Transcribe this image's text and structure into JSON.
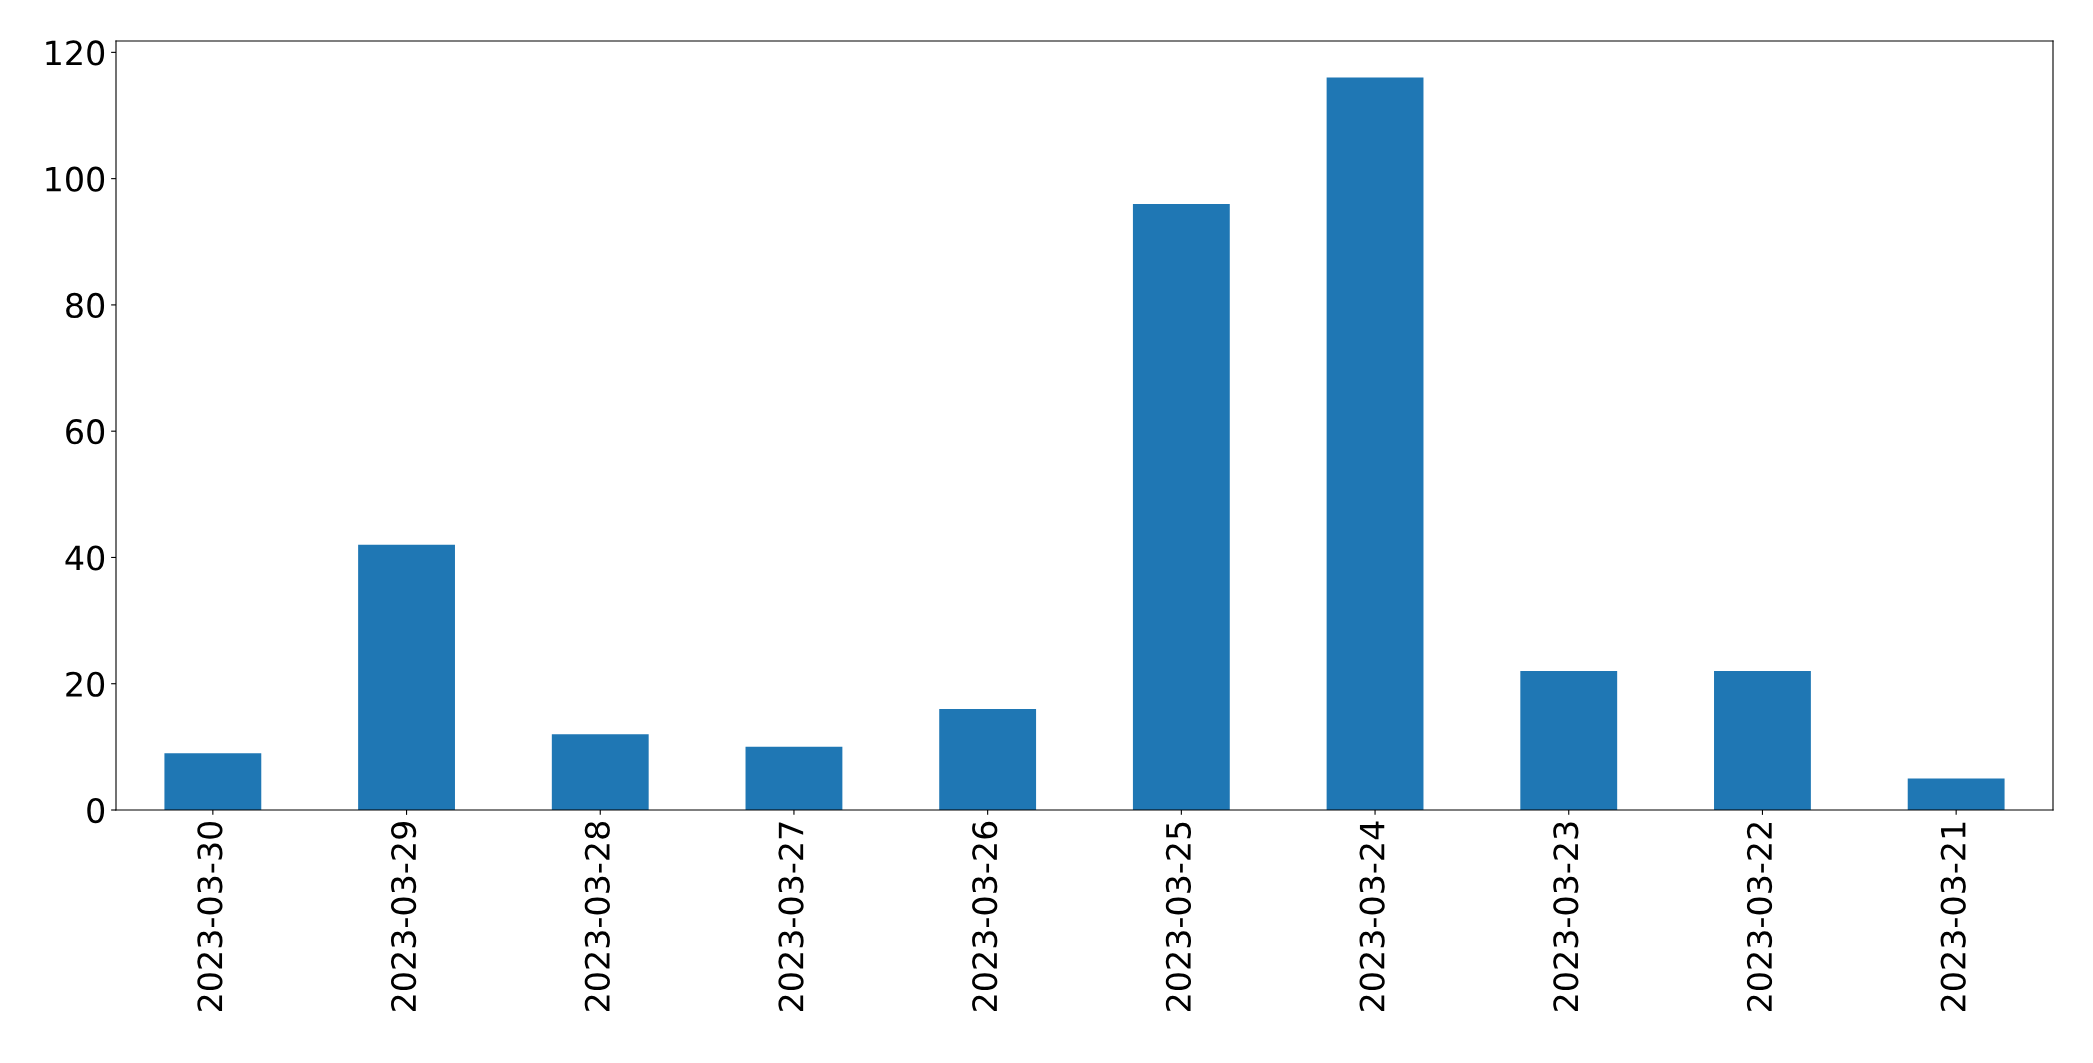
{
  "chart_data": {
    "type": "bar",
    "categories": [
      "2023-03-30",
      "2023-03-29",
      "2023-03-28",
      "2023-03-27",
      "2023-03-26",
      "2023-03-25",
      "2023-03-24",
      "2023-03-23",
      "2023-03-22",
      "2023-03-21"
    ],
    "values": [
      9,
      42,
      12,
      10,
      16,
      96,
      116,
      22,
      22,
      5
    ],
    "color": "#1f77b4",
    "ylim": [
      0,
      121.8
    ],
    "yticks": [
      0,
      20,
      40,
      60,
      80,
      100,
      120
    ],
    "grid": false
  }
}
